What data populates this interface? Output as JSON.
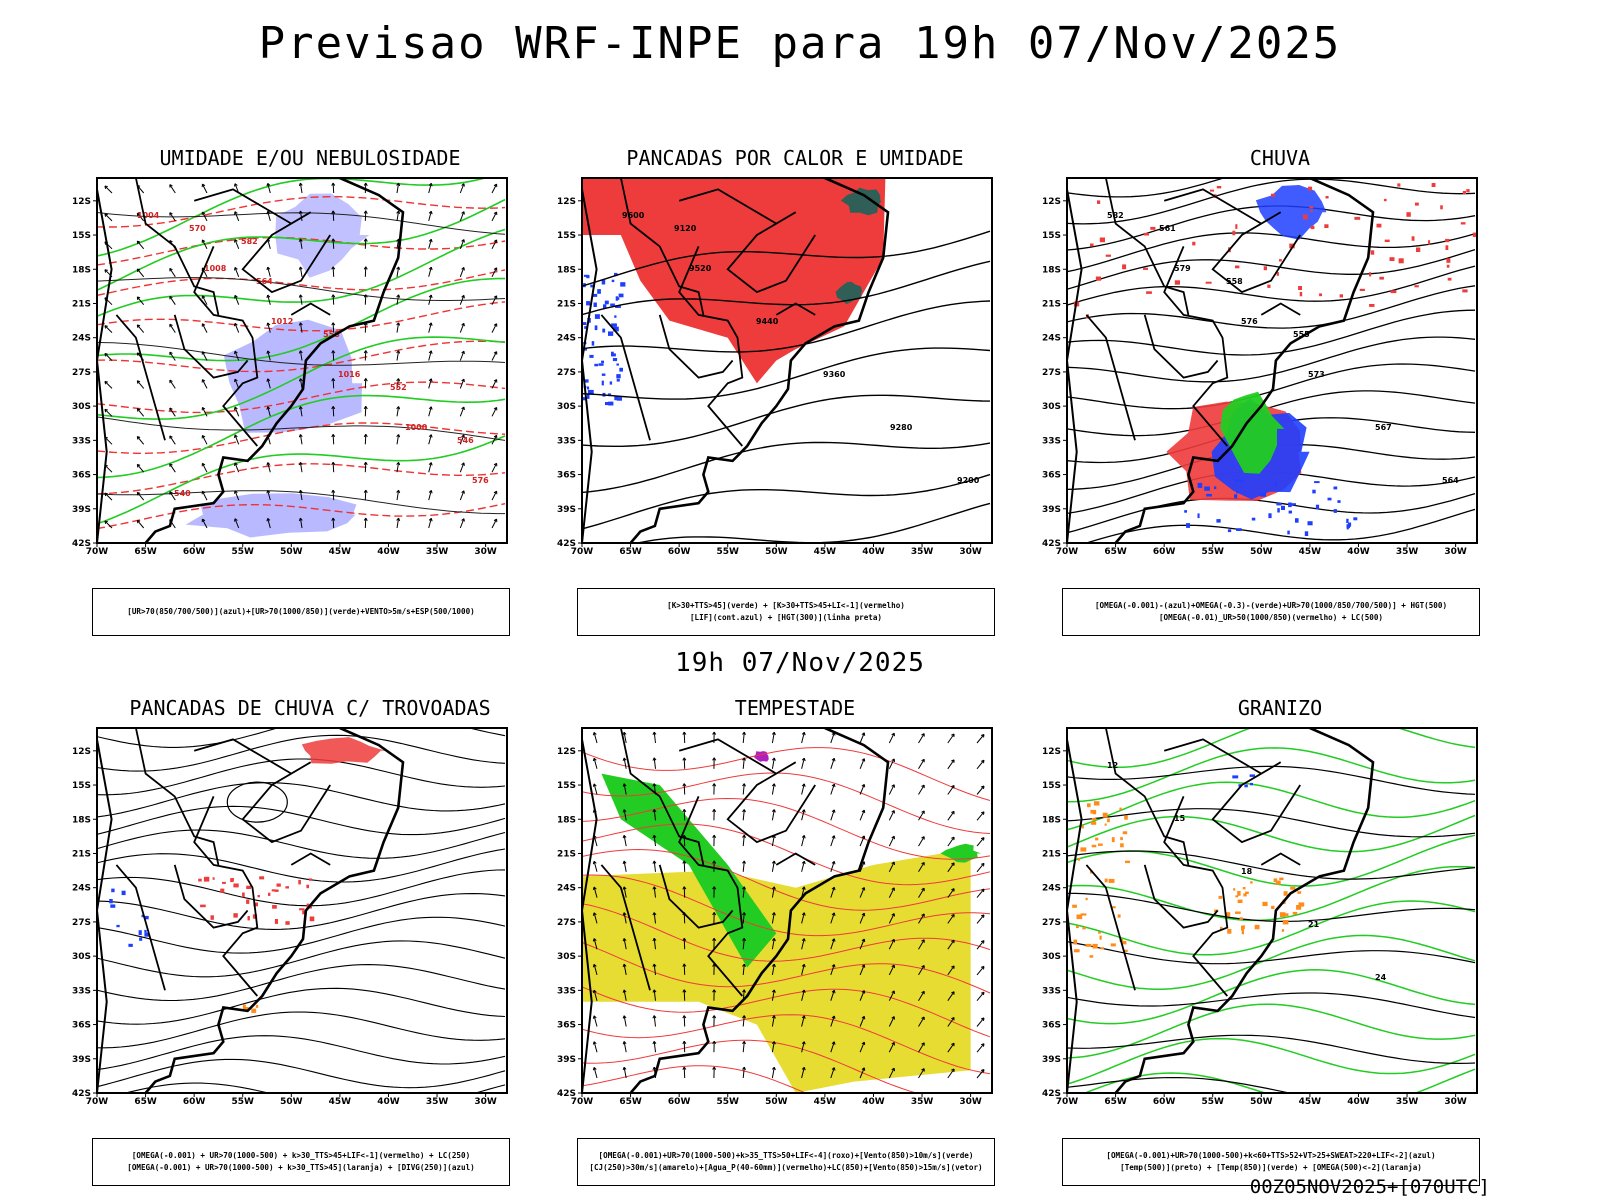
{
  "main_title": "Previsao WRF-INPE  para 19h 07/Nov/2025",
  "mid_title": "19h 07/Nov/2025",
  "footer_stamp": "00Z05NOV2025+[070UTC]",
  "axes": {
    "lat_labels": [
      "12S",
      "15S",
      "18S",
      "21S",
      "24S",
      "27S",
      "30S",
      "33S",
      "36S",
      "39S",
      "42S"
    ],
    "lon_labels": [
      "70W",
      "65W",
      "60W",
      "55W",
      "50W",
      "45W",
      "40W",
      "35W",
      "30W"
    ]
  },
  "colors": {
    "red": "#ee3b3b",
    "green": "#22cc22",
    "blue": "#1f3fff",
    "lavender": "#a7a7ff",
    "yellow": "#e6dc32",
    "dark_teal": "#2f5f57",
    "orange": "#ff8c1a",
    "purple": "#b020c0"
  },
  "panels": [
    {
      "title": "UMIDADE E/OU NEBULOSIDADE",
      "legend": [
        "[UR>70(850/700/500)](azul)+[UR>70(1000/850)](verde)+VENTO>5m/s+ESP(500/1000)"
      ],
      "labels": [
        "1004",
        "1008",
        "1012",
        "1016",
        "1000",
        "576",
        "570",
        "564",
        "558",
        "552",
        "546",
        "540",
        "582"
      ]
    },
    {
      "title": "PANCADAS POR CALOR E UMIDADE",
      "legend": [
        "[K>30+TTS>45](verde) + [K>30+TTS>45+LI<-1](vermelho)",
        "[LIF](cont.azul) + [HGT(300)](linha preta)"
      ],
      "labels": [
        "9600",
        "9520",
        "9440",
        "9360",
        "9280",
        "9200",
        "9120"
      ]
    },
    {
      "title": "CHUVA",
      "legend": [
        "[OMEGA(-0.001)-(azul)+OMEGA(-0.3)-(verde)+UR>70(1000/850/700/500)] + HGT(500)",
        "[OMEGA(-0.01)_UR>50(1000/850)(vermelho) + LC(500)"
      ],
      "labels": [
        "582",
        "579",
        "576",
        "573",
        "567",
        "564",
        "561",
        "558",
        "555"
      ]
    },
    {
      "title": "PANCADAS DE CHUVA C/ TROVOADAS",
      "legend": [
        "[OMEGA(-0.001) + UR>70(1000-500) + k>30_TTS>45+LIF<-1](vermelho) + LC(250)",
        "[OMEGA(-0.001) + UR>70(1000-500) + k>30_TTS>45](laranja) + [DIVG(250)](azul)"
      ],
      "labels": []
    },
    {
      "title": "TEMPESTADE",
      "legend": [
        "[OMEGA(-0.001)+UR>70(1000-500)+k>35_TTS>50+LIF<-4](roxo)+[Vento(850)>10m/s](verde)",
        "[CJ(250)>30m/s](amarelo)+[Agua_P(40-60mm)](vermelho)+LC(850)+[Vento(850)>15m/s](vetor)"
      ],
      "labels": []
    },
    {
      "title": "GRANIZO",
      "legend": [
        "[OMEGA(-0.001)+UR>70(1000-500)+k<60+TTS>52+VT>25+SWEAT>220+LIF<-2](azul)",
        "[Temp(500)](preto) + [Temp(850)](verde) + [OMEGA(500)<-2](laranja)"
      ],
      "labels": [
        "12",
        "15",
        "18",
        "21",
        "24"
      ]
    }
  ]
}
